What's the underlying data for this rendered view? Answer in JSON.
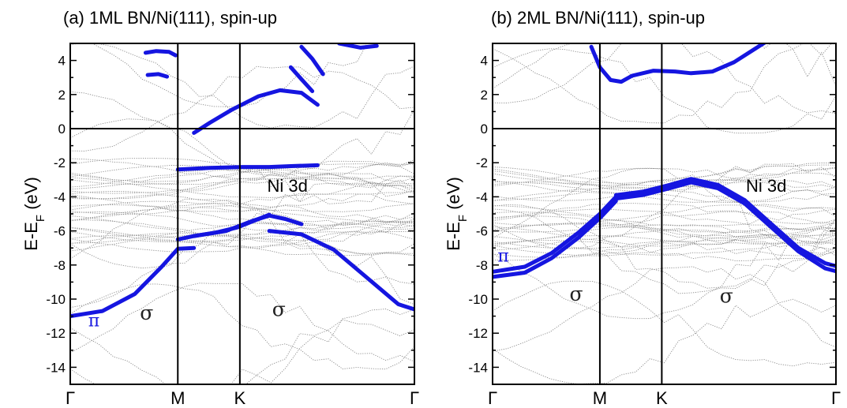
{
  "chart_data": [
    {
      "type": "line",
      "title": "(a) 1ML BN/Ni(111), spin-up",
      "ylabel": "E-E",
      "ylabel_sub": "F",
      "ylabel_unit": " (eV)",
      "xlabel": "",
      "ylim": [
        -15,
        5
      ],
      "yticks": [
        4,
        2,
        0,
        -2,
        -4,
        -6,
        -8,
        -10,
        -12,
        -14
      ],
      "x_kpoints": [
        "Γ",
        "M",
        "K",
        "Γ"
      ],
      "annotations": [
        {
          "text": "π",
          "x": 0.22,
          "y": -11.6
        },
        {
          "text": "σ",
          "x": 0.71,
          "y": -11.2
        },
        {
          "text": "σ",
          "x": 1.94,
          "y": -11.0
        },
        {
          "text": "Ni 3d",
          "x": 2.02,
          "y": -3.7
        }
      ],
      "series": [
        {
          "values": [
            [
              0.0,
              -11.0
            ],
            [
              0.3,
              -10.7
            ],
            [
              0.6,
              -9.7
            ],
            [
              0.85,
              -8.1
            ],
            [
              1.0,
              -7.05
            ],
            [
              1.15,
              -7.0
            ]
          ]
        },
        {
          "values": [
            [
              1.15,
              -6.3
            ],
            [
              1.45,
              -6.0
            ],
            [
              1.7,
              -5.4
            ],
            [
              1.85,
              -5.1
            ],
            [
              2.0,
              -5.3
            ],
            [
              2.15,
              -5.6
            ]
          ]
        },
        {
          "values": [
            [
              1.85,
              -6.0
            ],
            [
              2.15,
              -6.2
            ],
            [
              2.45,
              -7.1
            ],
            [
              2.75,
              -8.7
            ],
            [
              3.05,
              -10.3
            ],
            [
              3.4,
              -11.0
            ]
          ]
        },
        {
          "values": [
            [
              1.0,
              -6.5
            ],
            [
              1.15,
              -6.3
            ],
            [
              1.35,
              -6.1
            ],
            [
              1.55,
              -5.8
            ],
            [
              1.75,
              -5.3
            ],
            [
              1.85,
              -5.05
            ]
          ]
        },
        {
          "values": [
            [
              1.0,
              -2.4
            ],
            [
              1.3,
              -2.3
            ],
            [
              1.6,
              -2.25
            ],
            [
              1.85,
              -2.25
            ],
            [
              2.05,
              -2.2
            ],
            [
              2.3,
              -2.15
            ]
          ]
        },
        {
          "values": [
            [
              1.15,
              -0.25
            ],
            [
              1.3,
              0.35
            ],
            [
              1.5,
              1.1
            ],
            [
              1.75,
              1.9
            ],
            [
              1.95,
              2.25
            ],
            [
              2.15,
              2.1
            ],
            [
              2.3,
              1.4
            ]
          ]
        },
        {
          "values": [
            [
              0.7,
              4.45
            ],
            [
              0.8,
              4.55
            ],
            [
              0.92,
              4.5
            ],
            [
              0.98,
              4.3
            ]
          ]
        },
        {
          "values": [
            [
              0.72,
              3.15
            ],
            [
              0.82,
              3.2
            ],
            [
              0.9,
              3.05
            ]
          ]
        },
        {
          "values": [
            [
              2.05,
              3.6
            ],
            [
              2.15,
              2.9
            ],
            [
              2.25,
              2.2
            ]
          ]
        },
        {
          "values": [
            [
              2.15,
              4.8
            ],
            [
              2.25,
              4.1
            ],
            [
              2.35,
              3.2
            ]
          ]
        },
        {
          "values": [
            [
              2.5,
              5.0
            ],
            [
              2.7,
              4.75
            ],
            [
              2.85,
              4.85
            ]
          ]
        }
      ]
    },
    {
      "type": "line",
      "title": "(b) 2ML BN/Ni(111), spin-up",
      "ylabel": "E-E",
      "ylabel_sub": "F",
      "ylabel_unit": " (eV)",
      "xlabel": "",
      "ylim": [
        -15,
        5
      ],
      "yticks": [
        4,
        2,
        0,
        -2,
        -4,
        -6,
        -8,
        -10,
        -12,
        -14
      ],
      "x_kpoints": [
        "Γ",
        "M",
        "K",
        "Γ"
      ],
      "annotations": [
        {
          "text": "π",
          "x": 0.1,
          "y": -7.8
        },
        {
          "text": "σ",
          "x": 0.78,
          "y": -10.1
        },
        {
          "text": "σ",
          "x": 2.18,
          "y": -10.2
        },
        {
          "text": "Ni 3d",
          "x": 2.55,
          "y": -3.7
        }
      ],
      "series": [
        {
          "values": [
            [
              0.0,
              -8.4
            ],
            [
              0.3,
              -8.1
            ],
            [
              0.55,
              -7.3
            ],
            [
              0.8,
              -6.1
            ],
            [
              1.0,
              -5.0
            ],
            [
              1.15,
              -4.0
            ]
          ]
        },
        {
          "values": [
            [
              0.0,
              -8.7
            ],
            [
              0.3,
              -8.45
            ],
            [
              0.55,
              -7.6
            ],
            [
              0.8,
              -6.4
            ],
            [
              1.0,
              -5.25
            ],
            [
              1.15,
              -4.25
            ]
          ]
        },
        {
          "values": [
            [
              1.15,
              -3.9
            ],
            [
              1.4,
              -3.7
            ],
            [
              1.65,
              -3.3
            ],
            [
              1.85,
              -2.95
            ],
            [
              2.1,
              -3.3
            ],
            [
              2.35,
              -4.2
            ]
          ]
        },
        {
          "values": [
            [
              1.15,
              -4.1
            ],
            [
              1.4,
              -3.9
            ],
            [
              1.65,
              -3.5
            ],
            [
              1.85,
              -3.15
            ],
            [
              2.1,
              -3.5
            ],
            [
              2.35,
              -4.4
            ]
          ]
        },
        {
          "values": [
            [
              2.35,
              -4.2
            ],
            [
              2.6,
              -5.6
            ],
            [
              2.85,
              -7.0
            ],
            [
              3.1,
              -7.9
            ],
            [
              3.4,
              -8.4
            ]
          ]
        },
        {
          "values": [
            [
              2.35,
              -4.4
            ],
            [
              2.6,
              -5.8
            ],
            [
              2.85,
              -7.2
            ],
            [
              3.1,
              -8.2
            ],
            [
              3.4,
              -8.7
            ]
          ]
        },
        {
          "values": [
            [
              0.92,
              4.8
            ],
            [
              1.0,
              3.6
            ],
            [
              1.1,
              2.85
            ],
            [
              1.2,
              2.75
            ],
            [
              1.3,
              3.1
            ],
            [
              1.5,
              3.4
            ],
            [
              1.7,
              3.35
            ],
            [
              1.85,
              3.25
            ],
            [
              2.05,
              3.35
            ],
            [
              2.25,
              3.9
            ],
            [
              2.45,
              4.7
            ],
            [
              2.55,
              5.1
            ]
          ]
        }
      ]
    }
  ]
}
